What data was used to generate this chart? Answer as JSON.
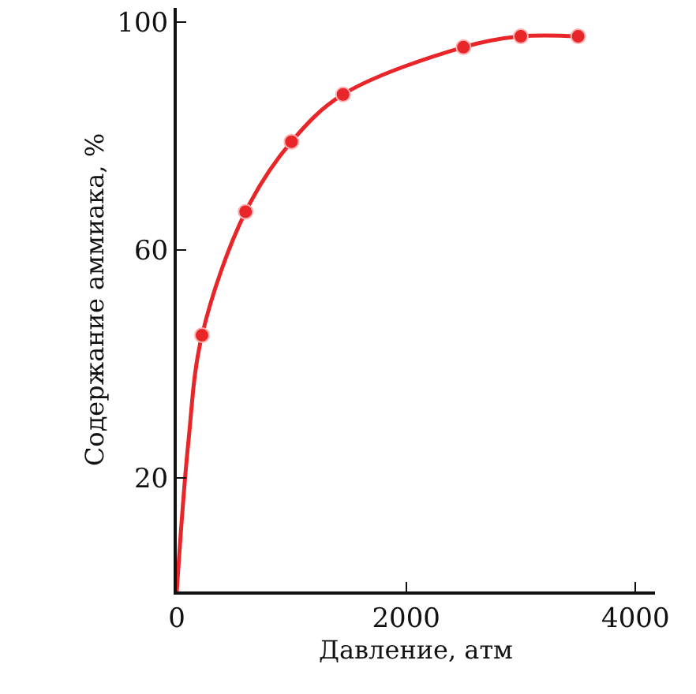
{
  "chart_data": {
    "type": "line",
    "xlabel": "Давление, атм",
    "ylabel": "Содержание аммиака, %",
    "xlim": [
      0,
      4170
    ],
    "xticks": [
      0,
      2000,
      4000
    ],
    "ylim": [
      0,
      102.5
    ],
    "yticks": [
      20,
      60,
      100
    ],
    "legend": false,
    "series": [
      {
        "marker": "none",
        "color": "#e8262a",
        "x": [
          0,
          100,
          220,
          600,
          1000,
          1450,
          2500,
          3000,
          3500
        ],
        "values": [
          0,
          26,
          45,
          66.7,
          79,
          87.3,
          95.6,
          97.5,
          97.5
        ]
      },
      {
        "type": "scatter",
        "marker": "circle",
        "color": "#e8262a",
        "x": [
          220,
          600,
          1000,
          1450,
          2500,
          3000,
          3500
        ],
        "values": [
          45,
          66.7,
          79,
          87.3,
          95.6,
          97.5,
          97.5
        ]
      }
    ]
  }
}
